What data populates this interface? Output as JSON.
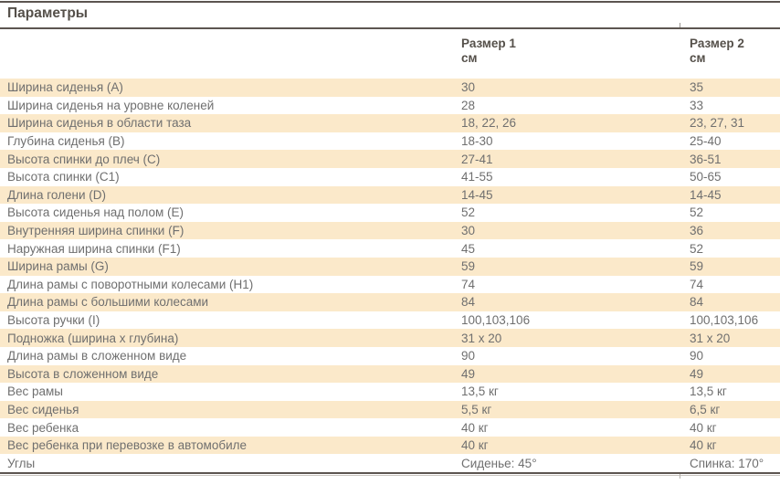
{
  "title": "Параметры",
  "table": {
    "columns": [
      {
        "label": "Размер 1",
        "unit": "см"
      },
      {
        "label": "Размер 2",
        "unit": "см"
      }
    ],
    "rows": [
      {
        "label": "Ширина сиденья (А)",
        "size1": "30",
        "size2": "35"
      },
      {
        "label": "Ширина сиденья на уровне коленей",
        "size1": "28",
        "size2": "33"
      },
      {
        "label": "Ширина сиденья в области таза",
        "size1": "18, 22, 26",
        "size2": "23, 27, 31"
      },
      {
        "label": "Глубина сиденья (B)",
        "size1": "18-30",
        "size2": "25-40"
      },
      {
        "label": "Высота спинки до плеч (C)",
        "size1": "27-41",
        "size2": "36-51"
      },
      {
        "label": "Высота спинки (C1)",
        "size1": "41-55",
        "size2": "50-65"
      },
      {
        "label": "Длина голени (D)",
        "size1": "14-45",
        "size2": "14-45"
      },
      {
        "label": "Высота сиденья над полом (E)",
        "size1": "52",
        "size2": "52"
      },
      {
        "label": "Внутренняя ширина спинки (F)",
        "size1": "30",
        "size2": "36"
      },
      {
        "label": "Наружная ширина спинки (F1)",
        "size1": "45",
        "size2": "52"
      },
      {
        "label": "Ширина рамы (G)",
        "size1": "59",
        "size2": "59"
      },
      {
        "label": "Длина рамы с поворотными колесами (H1)",
        "size1": "74",
        "size2": "74"
      },
      {
        "label": "Длина рамы с большими колесами",
        "size1": "84",
        "size2": "84"
      },
      {
        "label": "Высота ручки (I)",
        "size1": "100,103,106",
        "size2": "100,103,106"
      },
      {
        "label": "Подножка (ширина х глубина)",
        "size1": "31 х 20",
        "size2": "31 х 20"
      },
      {
        "label": "Длина рамы в сложенном виде",
        "size1": "90",
        "size2": "90"
      },
      {
        "label": "Высота в сложенном виде",
        "size1": "49",
        "size2": "49"
      },
      {
        "label": "Вес рамы",
        "size1": "13,5 кг",
        "size2": "13,5 кг"
      },
      {
        "label": "Вес сиденья",
        "size1": "5,5 кг",
        "size2": "6,5 кг"
      },
      {
        "label": "Вес ребенка",
        "size1": "40 кг",
        "size2": "40 кг"
      },
      {
        "label": "Вес ребенка при перевозке в автомобиле",
        "size1": "40 кг",
        "size2": "40 кг"
      },
      {
        "label": "Углы",
        "size1": "Сиденье: 45°",
        "size2": "Спинка: 170°"
      }
    ]
  },
  "colors": {
    "accent_row": "#fbe9ca",
    "text": "#6f6f6f",
    "heading": "#55504a",
    "rule": "#5c5550"
  }
}
